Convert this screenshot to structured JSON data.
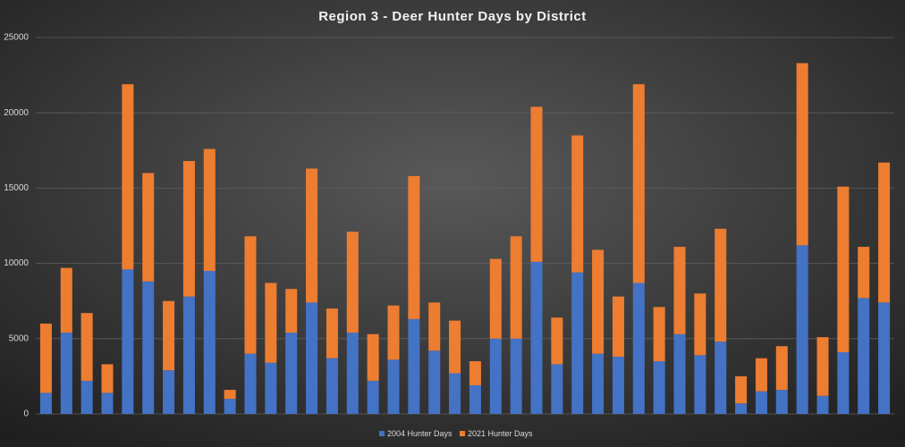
{
  "chart_data": {
    "type": "stacked_bar",
    "title": "Region 3 - Deer Hunter Days by District",
    "categories": [
      null,
      null,
      null,
      null,
      null,
      null,
      null,
      null,
      null,
      null,
      null,
      null,
      null,
      null,
      null,
      null,
      null,
      null,
      null,
      null,
      null,
      null,
      null,
      null,
      null,
      null,
      null,
      null,
      null,
      null,
      null,
      null,
      null,
      null,
      null,
      null,
      null,
      null,
      null,
      null,
      null,
      null
    ],
    "series": [
      {
        "name": "2004 Hunter Days",
        "color": "#4472c4",
        "values": [
          1400,
          5400,
          2200,
          1400,
          9600,
          8800,
          2900,
          7800,
          9500,
          1000,
          4000,
          3400,
          5400,
          7400,
          3700,
          5400,
          2200,
          3600,
          6300,
          4200,
          2700,
          1900,
          5000,
          5000,
          10100,
          3300,
          9400,
          4000,
          3800,
          8700,
          3500,
          5300,
          3900,
          4800,
          700,
          1500,
          1600,
          11200,
          1200,
          4100,
          7700,
          7400
        ]
      },
      {
        "name": "2021 Hunter Days",
        "color": "#ed7d31",
        "values": [
          4600,
          4300,
          4500,
          1900,
          12300,
          7200,
          4600,
          9000,
          8100,
          600,
          7800,
          5300,
          2900,
          8900,
          3300,
          6700,
          3100,
          3600,
          9500,
          3200,
          3500,
          1600,
          5300,
          6800,
          10300,
          3100,
          9100,
          6900,
          4000,
          13200,
          3600,
          5800,
          4100,
          7500,
          1800,
          2200,
          2900,
          12100,
          3900,
          11000,
          3400,
          9300
        ]
      }
    ],
    "ylim": [
      0,
      25000
    ],
    "yticks": [
      0,
      5000,
      10000,
      15000,
      20000,
      25000
    ],
    "grid": true
  }
}
